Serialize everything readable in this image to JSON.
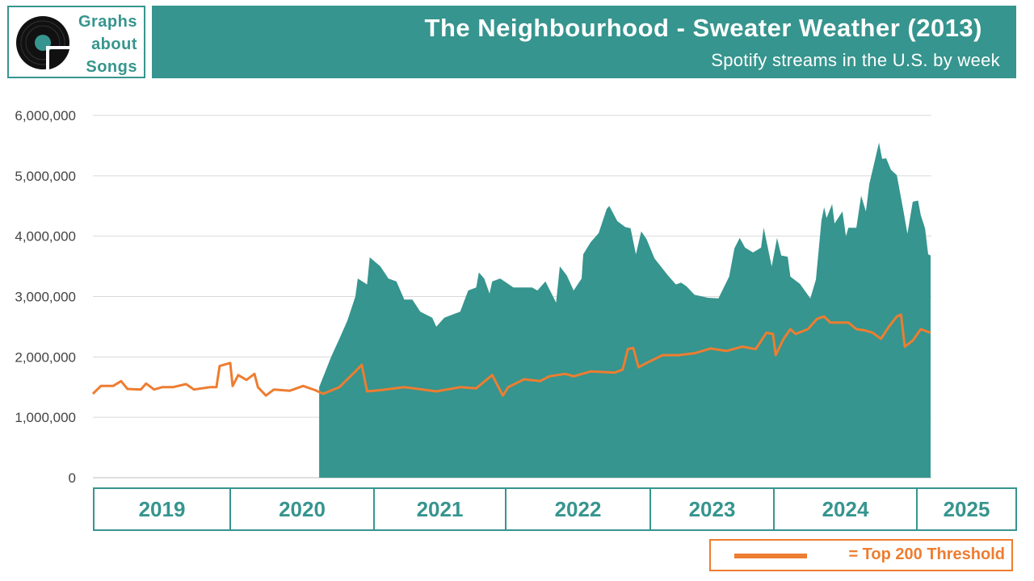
{
  "logo": {
    "lines": [
      "Graphs",
      "about",
      "Songs"
    ]
  },
  "header": {
    "title": "The Neighbourhood - Sweater Weather (2013)",
    "subtitle": "Spotify streams in the U.S. by week"
  },
  "colors": {
    "accent": "#36958e",
    "threshold": "#ed7d31",
    "grid": "#d9d9d9"
  },
  "legend": {
    "label": "= Top 200 Threshold"
  },
  "chart_data": {
    "type": "area",
    "title": "The Neighbourhood - Sweater Weather (2013)",
    "subtitle": "Spotify streams in the U.S. by week",
    "x_unit": "weeks since start of 2019",
    "value_unit": "millions of streams",
    "ylim": [
      0,
      6
    ],
    "y_ticks": [
      {
        "value": 0,
        "label": "0"
      },
      {
        "value": 1,
        "label": "1,000,000"
      },
      {
        "value": 2,
        "label": "2,000,000"
      },
      {
        "value": 3,
        "label": "3,000,000"
      },
      {
        "value": 4,
        "label": "4,000,000"
      },
      {
        "value": 5,
        "label": "5,000,000"
      },
      {
        "value": 6,
        "label": "6,000,000"
      }
    ],
    "x_categories": [
      "2019",
      "2020",
      "2021",
      "2022",
      "2023",
      "2024",
      "2025"
    ],
    "grid": true,
    "legend_position": "bottom-right",
    "series": [
      {
        "name": "Streams",
        "kind": "area",
        "points": [
          [
            85,
            1.5
          ],
          [
            89.5,
            2.0
          ],
          [
            92.6,
            2.3
          ],
          [
            95.6,
            2.6
          ],
          [
            98.6,
            3.0
          ],
          [
            99.5,
            3.3
          ],
          [
            103,
            3.2
          ],
          [
            104,
            3.65
          ],
          [
            108,
            3.5
          ],
          [
            111,
            3.3
          ],
          [
            114,
            3.25
          ],
          [
            117,
            2.95
          ],
          [
            120,
            2.95
          ],
          [
            123,
            2.75
          ],
          [
            127.5,
            2.65
          ],
          [
            129,
            2.5
          ],
          [
            132,
            2.65
          ],
          [
            135,
            2.7
          ],
          [
            138,
            2.75
          ],
          [
            141,
            3.1
          ],
          [
            144,
            3.15
          ],
          [
            145,
            3.4
          ],
          [
            147,
            3.3
          ],
          [
            149,
            3.05
          ],
          [
            150,
            3.25
          ],
          [
            153,
            3.3
          ],
          [
            158,
            3.15
          ],
          [
            165,
            3.15
          ],
          [
            167,
            3.1
          ],
          [
            170,
            3.25
          ],
          [
            174,
            2.9
          ],
          [
            175.4,
            3.5
          ],
          [
            178,
            3.35
          ],
          [
            180.6,
            3.1
          ],
          [
            183.6,
            3.3
          ],
          [
            184.2,
            3.7
          ],
          [
            187,
            3.9
          ],
          [
            190,
            4.05
          ],
          [
            193,
            4.45
          ],
          [
            194,
            4.5
          ],
          [
            197,
            4.25
          ],
          [
            200,
            4.15
          ],
          [
            202,
            4.13
          ],
          [
            204,
            3.7
          ],
          [
            206,
            4.08
          ],
          [
            208,
            3.95
          ],
          [
            211,
            3.63
          ],
          [
            216,
            3.35
          ],
          [
            219,
            3.2
          ],
          [
            221,
            3.23
          ],
          [
            223,
            3.17
          ],
          [
            226,
            3.03
          ],
          [
            231,
            2.98
          ],
          [
            235,
            2.97
          ],
          [
            239,
            3.33
          ],
          [
            241,
            3.8
          ],
          [
            243,
            3.97
          ],
          [
            245,
            3.81
          ],
          [
            248,
            3.73
          ],
          [
            251,
            3.81
          ],
          [
            252,
            4.14
          ],
          [
            255,
            3.5
          ],
          [
            257,
            3.97
          ],
          [
            258.6,
            3.68
          ],
          [
            261,
            3.66
          ],
          [
            262,
            3.33
          ],
          [
            265.6,
            3.21
          ],
          [
            269.5,
            2.97
          ],
          [
            271.6,
            3.28
          ],
          [
            273.7,
            4.26
          ],
          [
            274.7,
            4.48
          ],
          [
            275.6,
            4.3
          ],
          [
            277.7,
            4.53
          ],
          [
            278.6,
            4.21
          ],
          [
            281.6,
            4.41
          ],
          [
            282.9,
            4.0
          ],
          [
            283.8,
            4.14
          ],
          [
            286.8,
            4.14
          ],
          [
            288.6,
            4.67
          ],
          [
            290.4,
            4.41
          ],
          [
            291.7,
            4.87
          ],
          [
            293.5,
            5.21
          ],
          [
            295.3,
            5.55
          ],
          [
            296.5,
            5.28
          ],
          [
            298,
            5.29
          ],
          [
            299.8,
            5.1
          ],
          [
            302,
            5.01
          ],
          [
            304.4,
            4.44
          ],
          [
            306,
            4.04
          ],
          [
            308,
            4.57
          ],
          [
            310,
            4.59
          ],
          [
            311,
            4.35
          ],
          [
            312.6,
            4.13
          ],
          [
            313.8,
            3.7
          ],
          [
            314.7,
            3.68
          ]
        ]
      },
      {
        "name": "Top 200 Threshold",
        "kind": "line",
        "points": [
          [
            0,
            1.39
          ],
          [
            3,
            1.52
          ],
          [
            7.6,
            1.52
          ],
          [
            10.6,
            1.6
          ],
          [
            13,
            1.47
          ],
          [
            18,
            1.46
          ],
          [
            20,
            1.56
          ],
          [
            23,
            1.46
          ],
          [
            26,
            1.5
          ],
          [
            30,
            1.5
          ],
          [
            35,
            1.55
          ],
          [
            38,
            1.46
          ],
          [
            44,
            1.5
          ],
          [
            46.4,
            1.5
          ],
          [
            47.6,
            1.85
          ],
          [
            51.6,
            1.9
          ],
          [
            52.5,
            1.52
          ],
          [
            54.6,
            1.7
          ],
          [
            57.7,
            1.62
          ],
          [
            60.7,
            1.72
          ],
          [
            62,
            1.5
          ],
          [
            65,
            1.36
          ],
          [
            68,
            1.46
          ],
          [
            74,
            1.44
          ],
          [
            79,
            1.52
          ],
          [
            83.5,
            1.45
          ],
          [
            86.5,
            1.39
          ],
          [
            92.6,
            1.5
          ],
          [
            98.6,
            1.76
          ],
          [
            101,
            1.87
          ],
          [
            103,
            1.43
          ],
          [
            108,
            1.45
          ],
          [
            117,
            1.5
          ],
          [
            129,
            1.43
          ],
          [
            138,
            1.5
          ],
          [
            144,
            1.48
          ],
          [
            150,
            1.7
          ],
          [
            154,
            1.36
          ],
          [
            156,
            1.5
          ],
          [
            162,
            1.63
          ],
          [
            168,
            1.6
          ],
          [
            171.5,
            1.68
          ],
          [
            177.5,
            1.72
          ],
          [
            180.6,
            1.68
          ],
          [
            187,
            1.76
          ],
          [
            196,
            1.74
          ],
          [
            199,
            1.79
          ],
          [
            201,
            2.13
          ],
          [
            203,
            2.15
          ],
          [
            205,
            1.83
          ],
          [
            208,
            1.9
          ],
          [
            214,
            2.03
          ],
          [
            220,
            2.03
          ],
          [
            226,
            2.06
          ],
          [
            232,
            2.14
          ],
          [
            238,
            2.1
          ],
          [
            244,
            2.17
          ],
          [
            249,
            2.13
          ],
          [
            253,
            2.4
          ],
          [
            255.5,
            2.38
          ],
          [
            256.5,
            2.03
          ],
          [
            259.5,
            2.3
          ],
          [
            262,
            2.46
          ],
          [
            264,
            2.38
          ],
          [
            268.6,
            2.46
          ],
          [
            272,
            2.63
          ],
          [
            274.7,
            2.67
          ],
          [
            277,
            2.57
          ],
          [
            283.8,
            2.57
          ],
          [
            286.8,
            2.46
          ],
          [
            290,
            2.44
          ],
          [
            293,
            2.4
          ],
          [
            296,
            2.3
          ],
          [
            299,
            2.5
          ],
          [
            302,
            2.67
          ],
          [
            303.6,
            2.7
          ],
          [
            305,
            2.17
          ],
          [
            308,
            2.27
          ],
          [
            311,
            2.46
          ],
          [
            314.7,
            2.4
          ]
        ]
      }
    ]
  }
}
